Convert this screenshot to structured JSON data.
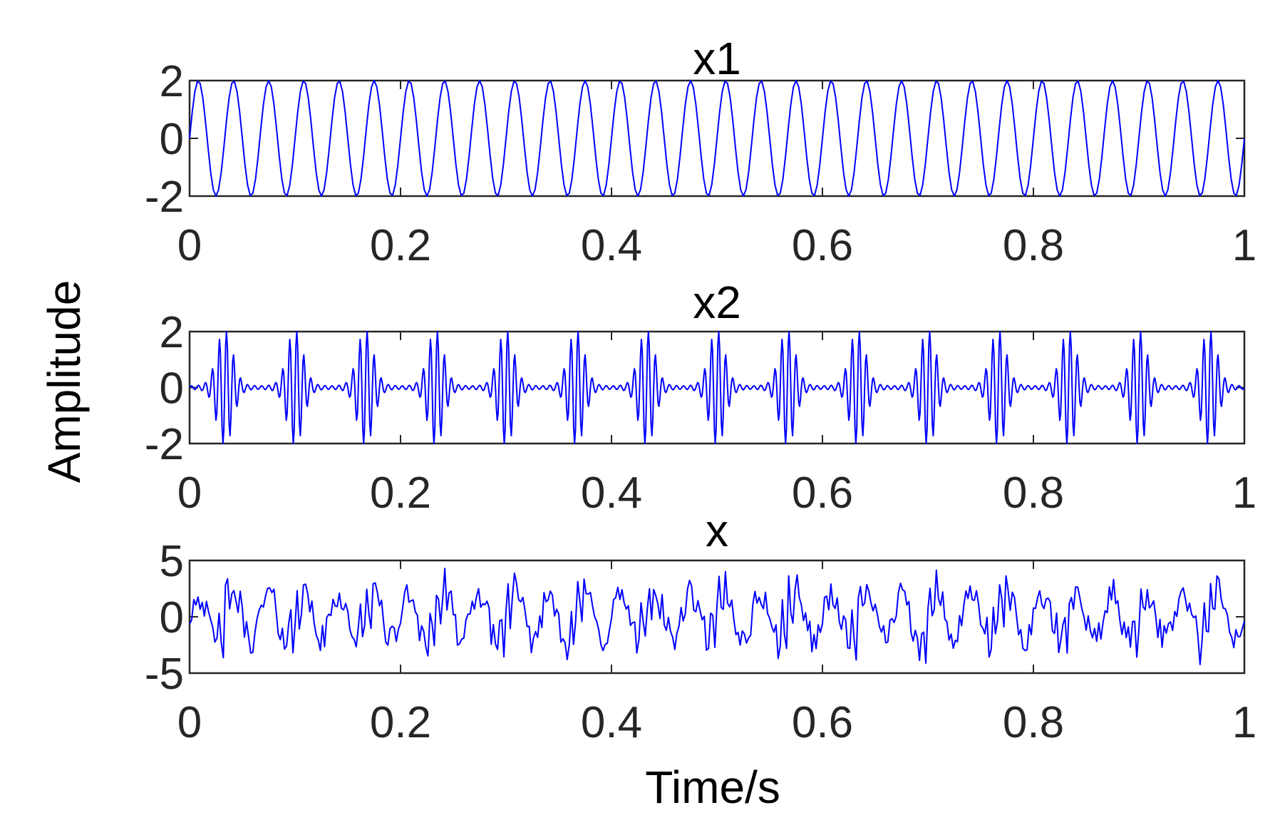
{
  "chart_data": {
    "type": "line",
    "xlabel": "Time/s",
    "ylabel": "Amplitude",
    "line_color": "#0000ff",
    "frame_color": "#262626",
    "grid": false,
    "panels": [
      {
        "title": "x1",
        "xlim": [
          0,
          1
        ],
        "ylim": [
          -2,
          2
        ],
        "xticks": [
          0,
          0.2,
          0.4,
          0.6,
          0.8,
          1
        ],
        "xtick_labels": [
          "0",
          "0.2",
          "0.4",
          "0.6",
          "0.8",
          "1"
        ],
        "yticks": [
          2,
          0,
          -2
        ],
        "ytick_labels": [
          "2",
          "0",
          "-2"
        ],
        "signal": {
          "description": "sinusoid",
          "components": [
            {
              "amplitude": 2,
              "frequency_hz": 30
            }
          ],
          "sample_points": 400
        }
      },
      {
        "title": "x2",
        "xlim": [
          0,
          1
        ],
        "ylim": [
          -2,
          2
        ],
        "xticks": [
          0,
          0.2,
          0.4,
          0.6,
          0.8,
          1
        ],
        "xtick_labels": [
          "0",
          "0.2",
          "0.4",
          "0.6",
          "0.8",
          "1"
        ],
        "yticks": [
          2,
          0,
          -2
        ],
        "ytick_labels": [
          "2",
          "0",
          "-2"
        ],
        "signal": {
          "description": "periodic impulse bursts",
          "burst_rate_hz": 15,
          "carrier_frequency_hz": 150,
          "peak_amplitude": 2,
          "sample_points": 1200
        }
      },
      {
        "title": "x",
        "xlim": [
          0,
          1
        ],
        "ylim": [
          -5,
          5
        ],
        "xticks": [
          0,
          0.2,
          0.4,
          0.6,
          0.8,
          1
        ],
        "xtick_labels": [
          "0",
          "0.2",
          "0.4",
          "0.6",
          "0.8",
          "1"
        ],
        "yticks": [
          5,
          0,
          -5
        ],
        "ytick_labels": [
          "5",
          "0",
          "-5"
        ],
        "signal": {
          "description": "x1 + x2 + noise",
          "noise_amplitude": 1.3,
          "sample_points": 500
        }
      }
    ]
  }
}
